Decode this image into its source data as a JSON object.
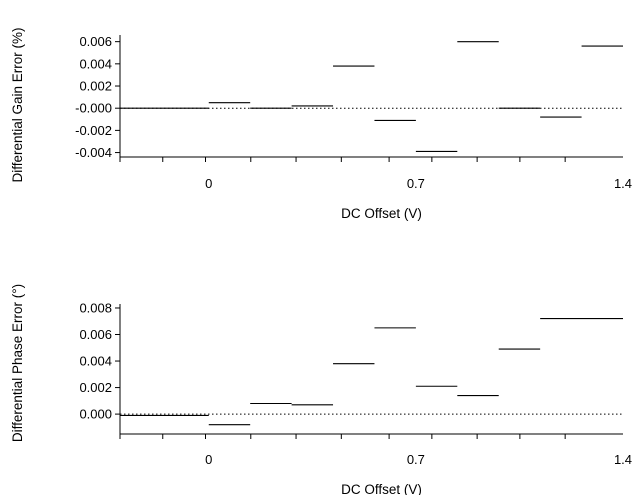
{
  "chart_data": [
    {
      "type": "line",
      "style": "step-segments",
      "ylabel": "Differential Gain Error (%)",
      "xlabel": "DC Offset (V)",
      "xticks": [
        0,
        0.7,
        1.4
      ],
      "yticks": [
        0.006,
        0.004,
        0.002,
        -0.0,
        -0.002,
        -0.004
      ],
      "ytick_labels": [
        "0.006",
        "0.004",
        "0.002",
        "-0.000",
        "-0.002",
        "-0.004"
      ],
      "xlim": [
        -0.3,
        1.4
      ],
      "ylim": [
        -0.0044,
        0.0066
      ],
      "reference_line": {
        "y": 0,
        "style": "dotted"
      },
      "series": [
        {
          "segments": [
            {
              "x0": -0.3,
              "x1": 0.0,
              "y": 0.0
            },
            {
              "x0": 0.0,
              "x1": 0.14,
              "y": 0.0005
            },
            {
              "x0": 0.14,
              "x1": 0.28,
              "y": 0.0
            },
            {
              "x0": 0.28,
              "x1": 0.42,
              "y": 0.0002
            },
            {
              "x0": 0.42,
              "x1": 0.56,
              "y": 0.0038
            },
            {
              "x0": 0.56,
              "x1": 0.7,
              "y": -0.0011
            },
            {
              "x0": 0.7,
              "x1": 0.84,
              "y": -0.0039
            },
            {
              "x0": 0.84,
              "x1": 0.98,
              "y": 0.006
            },
            {
              "x0": 0.98,
              "x1": 1.12,
              "y": 0.0
            },
            {
              "x0": 1.12,
              "x1": 1.26,
              "y": -0.0008
            },
            {
              "x0": 1.26,
              "x1": 1.4,
              "y": 0.0056
            }
          ]
        }
      ]
    },
    {
      "type": "line",
      "style": "step-segments",
      "ylabel": "Differential Phase Error (°)",
      "xlabel": "DC Offset (V)",
      "xticks": [
        0,
        0.7,
        1.4
      ],
      "yticks": [
        0.008,
        0.006,
        0.004,
        0.002,
        0.0
      ],
      "ytick_labels": [
        "0.008",
        "0.006",
        "0.004",
        "0.002",
        "0.000"
      ],
      "xlim": [
        -0.3,
        1.4
      ],
      "ylim": [
        -0.0015,
        0.0083
      ],
      "reference_line": {
        "y": 0,
        "style": "dotted"
      },
      "series": [
        {
          "segments": [
            {
              "x0": -0.3,
              "x1": 0.0,
              "y": -0.0001
            },
            {
              "x0": 0.0,
              "x1": 0.14,
              "y": -0.0008
            },
            {
              "x0": 0.14,
              "x1": 0.28,
              "y": 0.0008
            },
            {
              "x0": 0.28,
              "x1": 0.42,
              "y": 0.0007
            },
            {
              "x0": 0.42,
              "x1": 0.56,
              "y": 0.0038
            },
            {
              "x0": 0.56,
              "x1": 0.7,
              "y": 0.0065
            },
            {
              "x0": 0.7,
              "x1": 0.84,
              "y": 0.0021
            },
            {
              "x0": 0.84,
              "x1": 0.98,
              "y": 0.0014
            },
            {
              "x0": 0.98,
              "x1": 1.12,
              "y": 0.0049
            },
            {
              "x0": 1.12,
              "x1": 1.4,
              "y": 0.0072
            }
          ]
        }
      ]
    }
  ]
}
